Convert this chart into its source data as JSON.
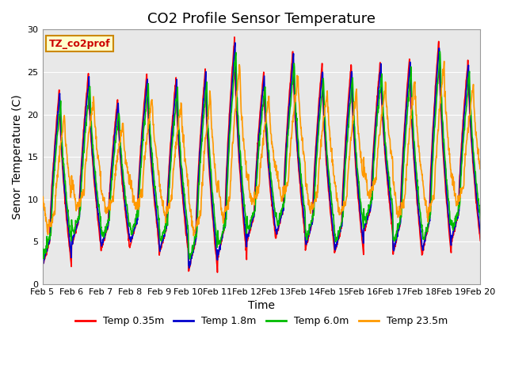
{
  "title": "CO2 Profile Sensor Temperature",
  "xlabel": "Time",
  "ylabel": "Senor Temperature (C)",
  "ylim": [
    0,
    30
  ],
  "x_tick_labels": [
    "Feb 5",
    "Feb 6",
    "Feb 7",
    "Feb 8",
    "Feb 9",
    "Feb 10",
    "Feb 11",
    "Feb 12",
    "Feb 13",
    "Feb 14",
    "Feb 15",
    "Feb 16",
    "Feb 17",
    "Feb 18",
    "Feb 19",
    "Feb 20"
  ],
  "series_names": [
    "Temp 0.35m",
    "Temp 1.8m",
    "Temp 6.0m",
    "Temp 23.5m"
  ],
  "series_colors": [
    "#ff0000",
    "#0000cc",
    "#00bb00",
    "#ff9900"
  ],
  "series_lw": [
    1.2,
    1.2,
    1.2,
    1.2
  ],
  "legend_label": "TZ_co2prof",
  "legend_box_color": "#ffffcc",
  "legend_box_edge": "#cc8800",
  "bg_color": "#e8e8e8",
  "title_fontsize": 13,
  "axis_label_fontsize": 10,
  "tick_fontsize": 8,
  "daily_peaks": [
    23.0,
    25.0,
    22.0,
    25.0,
    24.5,
    25.5,
    29.0,
    25.0,
    27.5,
    26.0,
    26.0,
    26.5,
    27.0,
    29.0,
    26.5
  ],
  "daily_troughs": [
    2.0,
    4.5,
    4.0,
    4.5,
    3.5,
    1.5,
    3.0,
    5.0,
    5.5,
    4.0,
    3.5,
    6.0,
    3.5,
    3.5,
    5.0
  ],
  "lags": [
    0.0,
    0.02,
    0.05,
    0.18
  ],
  "trough_offsets": [
    0.0,
    0.5,
    1.5,
    4.5
  ],
  "peak_offsets": [
    0.0,
    -0.5,
    -1.5,
    -3.0
  ],
  "noise_scales": [
    0.15,
    0.15,
    0.25,
    0.35
  ]
}
